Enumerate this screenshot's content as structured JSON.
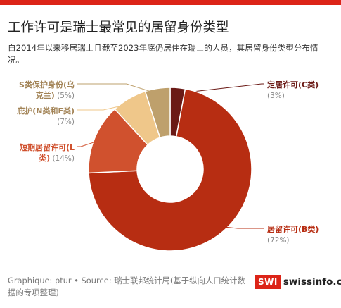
{
  "header": {
    "title": "工作许可是瑞士最常见的居留身份类型",
    "subtitle": "自2014年以来移居瑞士且截至2023年底仍居住在瑞士的人员，其居留身份类型分布情况。"
  },
  "chart_data": {
    "type": "pie",
    "donut": true,
    "slices": [
      {
        "label": "定居许可(C类)",
        "pct_label": "(3%)",
        "value": 3,
        "color": "#6b1a16"
      },
      {
        "label": "居留许可(B类)",
        "pct_label": "(72%)",
        "value": 72,
        "color": "#b72d12"
      },
      {
        "label": "短期居留许可(L类)",
        "pct_label": "(14%)",
        "value": 14,
        "color": "#d0512e"
      },
      {
        "label": "庇护(N类和F类)",
        "pct_label": "(7%)",
        "value": 7,
        "color": "#efc78a"
      },
      {
        "label": "S类保护身份(乌克兰)",
        "pct_label": "(5%)",
        "value": 5,
        "color": "#bea06c"
      }
    ]
  },
  "footer": {
    "credit": "Graphique: ptur • Source: 瑞士联邦统计局(基于纵向人口统计数据的专项整理)",
    "brand_mark": "SWI",
    "brand_name": "swissinfo.ch"
  }
}
